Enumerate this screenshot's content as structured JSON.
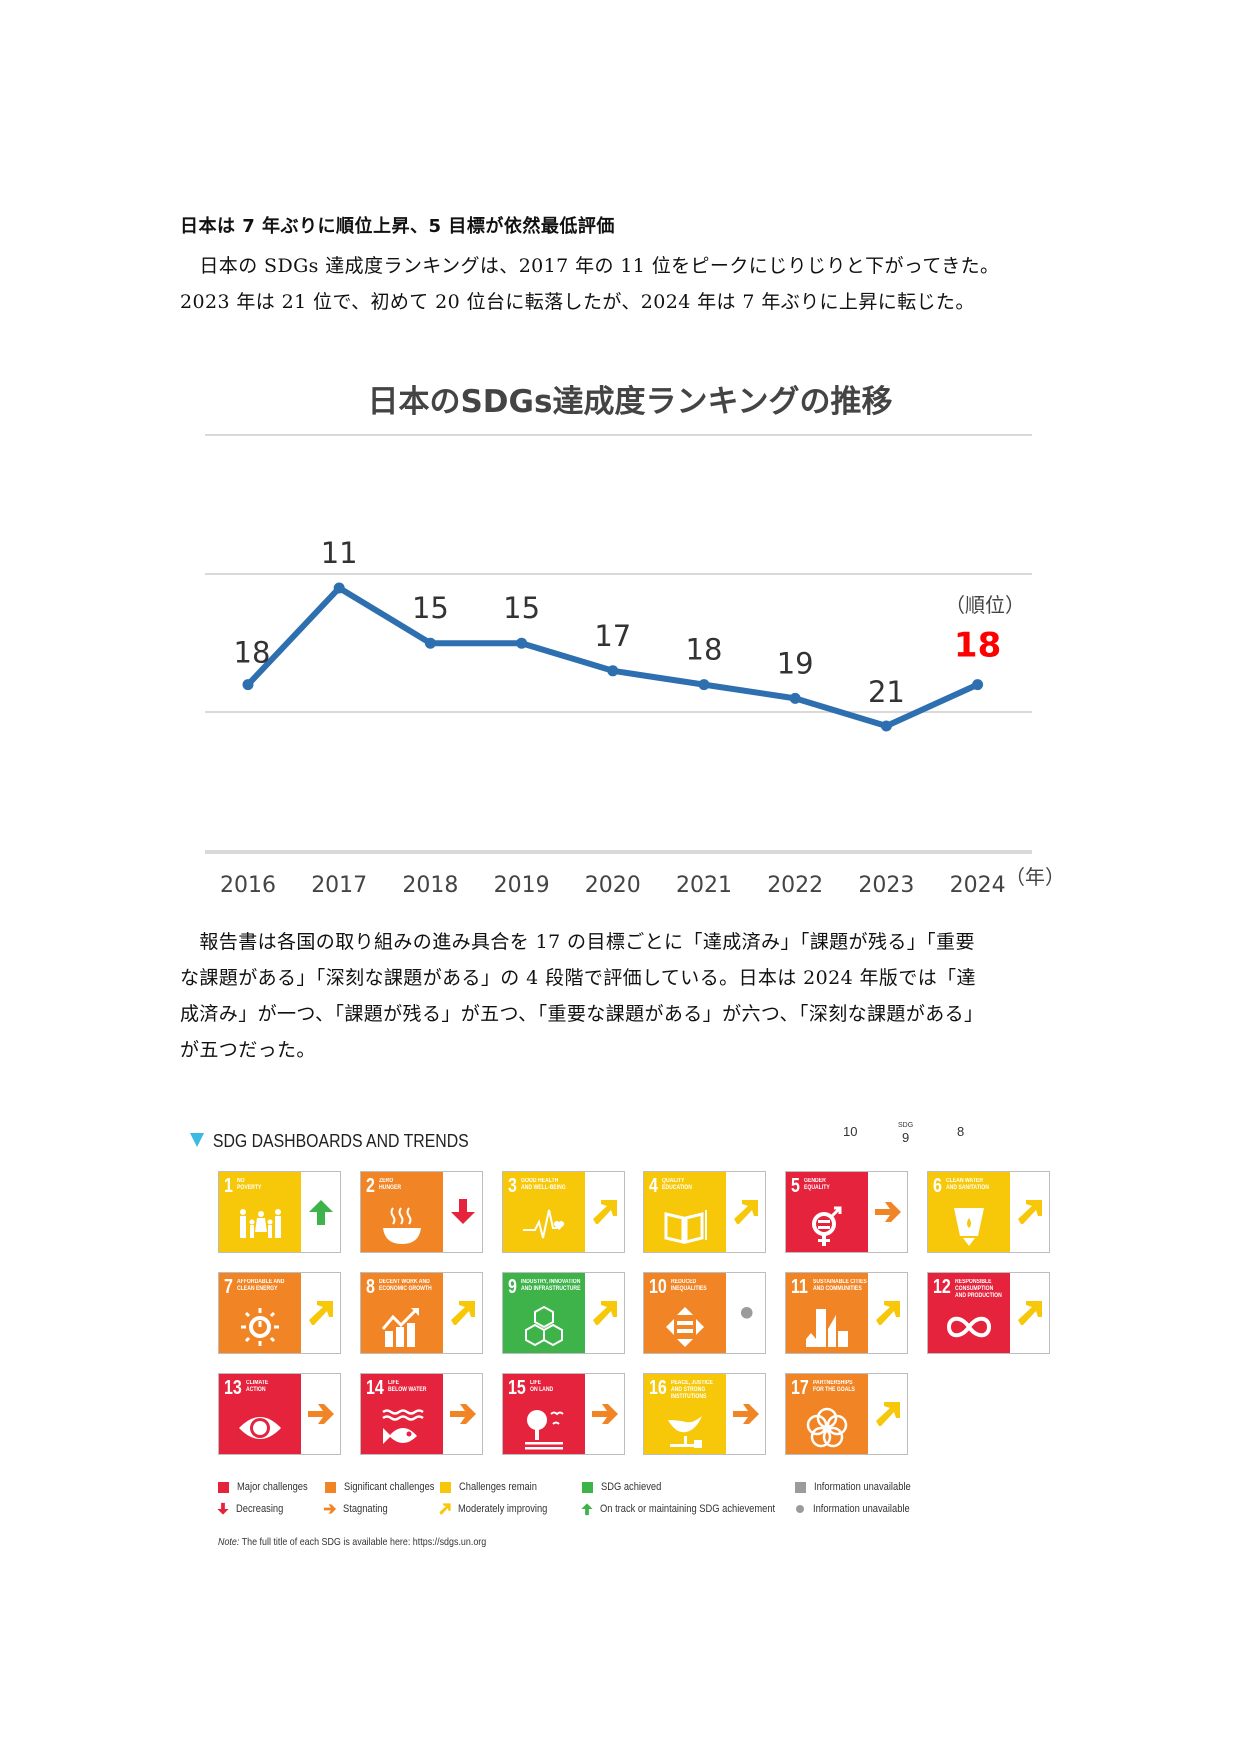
{
  "article": {
    "heading": "日本は 7 年ぶりに順位上昇、5 目標が依然最低評価",
    "paragraph1": [
      "　日本の SDGs 達成度ランキングは、2017 年の 11 位をピークにじりじりと下がってきた。",
      "2023 年は 21 位で、初めて 20 位台に転落したが、2024 年は 7 年ぶりに上昇に転じた。"
    ],
    "paragraph2": [
      "　報告書は各国の取り組みの進み具合を 17 の目標ごとに「達成済み」「課題が残る」「重要",
      "な課題がある」「深刻な課題がある」の 4 段階で評価している。日本は 2024 年版では「達",
      "成済み」が一つ、「課題が残る」が五つ、「重要な課題がある」が六つ、「深刻な課題がある」",
      "が五つだった。"
    ]
  },
  "chart_data": {
    "type": "line",
    "title": "日本のSDGs達成度ランキングの推移",
    "categories": [
      "2016",
      "2017",
      "2018",
      "2019",
      "2020",
      "2021",
      "2022",
      "2023",
      "2024"
    ],
    "series": [
      {
        "name": "順位",
        "values": [
          18,
          11,
          15,
          15,
          17,
          18,
          19,
          21,
          18
        ],
        "color": "#2e6fb0"
      }
    ],
    "highlight": {
      "index": 8,
      "color": "#ff0000"
    },
    "xlabel": "（年）",
    "ylabel": "（順位）",
    "y_inverted": true,
    "ylim": [
      0,
      30
    ],
    "grid": true,
    "legend": "none"
  },
  "dashboard": {
    "title": "SDG DASHBOARDS AND TRENDS",
    "axis_hint": {
      "left": "10",
      "center_small": "SDG",
      "center": "9",
      "right": "8"
    },
    "colors": {
      "red": "#e5233d",
      "orange": "#f18526",
      "yellow": "#f7c80a",
      "green": "#3eb34a",
      "grey": "#9b9b9b"
    },
    "goals": [
      {
        "num": "1",
        "name": "NO\nPOVERTY",
        "status": "yellow",
        "trend": "up",
        "icon": "family-icon"
      },
      {
        "num": "2",
        "name": "ZERO\nHUNGER",
        "status": "orange",
        "trend": "down",
        "icon": "bowl-icon"
      },
      {
        "num": "3",
        "name": "GOOD HEALTH\nAND WELL-BEING",
        "status": "yellow",
        "trend": "moderate",
        "icon": "heartbeat-icon"
      },
      {
        "num": "4",
        "name": "QUALITY\nEDUCATION",
        "status": "yellow",
        "trend": "moderate",
        "icon": "book-icon"
      },
      {
        "num": "5",
        "name": "GENDER\nEQUALITY",
        "status": "red",
        "trend": "stagnant",
        "icon": "gender-icon"
      },
      {
        "num": "6",
        "name": "CLEAN WATER\nAND SANITATION",
        "status": "yellow",
        "trend": "moderate",
        "icon": "water-glass-icon"
      },
      {
        "num": "7",
        "name": "AFFORDABLE AND\nCLEAN ENERGY",
        "status": "orange",
        "trend": "moderate",
        "icon": "sun-power-icon"
      },
      {
        "num": "8",
        "name": "DECENT WORK AND\nECONOMIC GROWTH",
        "status": "orange",
        "trend": "moderate",
        "icon": "growth-chart-icon"
      },
      {
        "num": "9",
        "name": "INDUSTRY, INNOVATION\nAND INFRASTRUCTURE",
        "status": "green",
        "trend": "moderate",
        "icon": "cubes-icon"
      },
      {
        "num": "10",
        "name": "REDUCED\nINEQUALITIES",
        "status": "orange",
        "trend": "unavailable",
        "icon": "equal-arrows-icon"
      },
      {
        "num": "11",
        "name": "SUSTAINABLE CITIES\nAND COMMUNITIES",
        "status": "orange",
        "trend": "moderate",
        "icon": "buildings-icon"
      },
      {
        "num": "12",
        "name": "RESPONSIBLE\nCONSUMPTION\nAND PRODUCTION",
        "status": "red",
        "trend": "moderate",
        "icon": "infinity-icon"
      },
      {
        "num": "13",
        "name": "CLIMATE\nACTION",
        "status": "red",
        "trend": "stagnant",
        "icon": "eye-globe-icon"
      },
      {
        "num": "14",
        "name": "LIFE\nBELOW WATER",
        "status": "red",
        "trend": "stagnant",
        "icon": "fish-icon"
      },
      {
        "num": "15",
        "name": "LIFE\nON LAND",
        "status": "red",
        "trend": "stagnant",
        "icon": "tree-icon"
      },
      {
        "num": "16",
        "name": "PEACE, JUSTICE\nAND STRONG\nINSTITUTIONS",
        "status": "yellow",
        "trend": "stagnant",
        "icon": "dove-icon"
      },
      {
        "num": "17",
        "name": "PARTNERSHIPS\nFOR THE GOALS",
        "status": "orange",
        "trend": "moderate",
        "icon": "rings-icon"
      }
    ],
    "legend": {
      "status": [
        {
          "label": "Major challenges",
          "color": "#e5233d"
        },
        {
          "label": "Significant challenges",
          "color": "#f18526"
        },
        {
          "label": "Challenges remain",
          "color": "#f7c80a"
        },
        {
          "label": "SDG achieved",
          "color": "#3eb34a"
        },
        {
          "label": "Information unavailable",
          "color": "#9b9b9b"
        }
      ],
      "trends": [
        {
          "label": "Decreasing",
          "trend": "down"
        },
        {
          "label": "Stagnating",
          "trend": "stagnant"
        },
        {
          "label": "Moderately improving",
          "trend": "moderate"
        },
        {
          "label": "On track or maintaining SDG achievement",
          "trend": "up"
        },
        {
          "label": "Information unavailable",
          "trend": "unavailable"
        }
      ]
    },
    "note_label": "Note:",
    "note_text": " The full title of each SDG is available here: https://sdgs.un.org"
  }
}
